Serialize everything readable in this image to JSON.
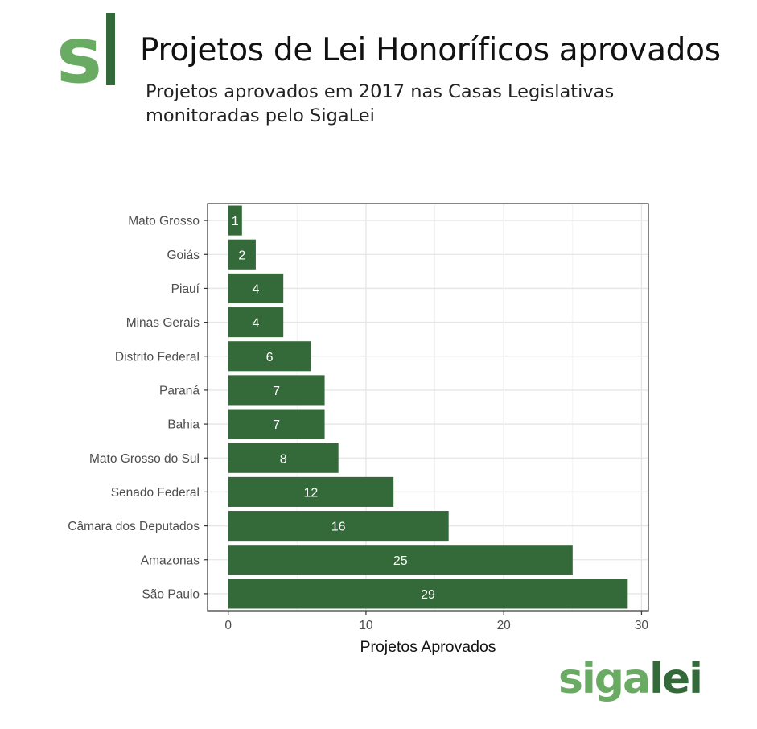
{
  "header": {
    "logo_text": "sl",
    "title": "Projetos de Lei Honoríficos aprovados",
    "subtitle_line1": "Projetos aprovados em 2017 nas Casas Legislativas",
    "subtitle_line2": "monitoradas pelo SigaLei"
  },
  "brand": {
    "part1": "siga",
    "part2": "lei"
  },
  "colors": {
    "bar": "#346a39",
    "logo_light": "#6aab63",
    "logo_dark": "#346a39"
  },
  "chart_data": {
    "type": "bar",
    "orientation": "horizontal",
    "categories": [
      "Mato Grosso",
      "Goiás",
      "Piauí",
      "Minas Gerais",
      "Distrito Federal",
      "Paraná",
      "Bahia",
      "Mato Grosso do Sul",
      "Senado Federal",
      "Câmara dos Deputados",
      "Amazonas",
      "São Paulo"
    ],
    "values": [
      1,
      2,
      4,
      4,
      6,
      7,
      7,
      8,
      12,
      16,
      25,
      29
    ],
    "data_labels": true,
    "xlabel": "Projetos Aprovados",
    "ylabel": "",
    "xlim": [
      -1.5,
      30.5
    ],
    "xticks": [
      0,
      10,
      20,
      30
    ],
    "grid": true
  }
}
